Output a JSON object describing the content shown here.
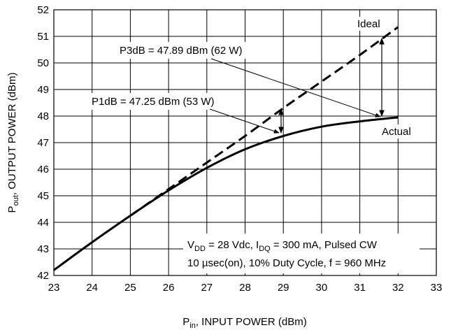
{
  "chart_data": {
    "type": "line",
    "xlabel": "P_in, INPUT POWER (dBm)",
    "xlabel_main": "P",
    "xlabel_sub": "in",
    "xlabel_rest": ", INPUT POWER (dBm)",
    "ylabel": "P_out, OUTPUT POWER (dBm)",
    "ylabel_main": "P",
    "ylabel_sub": "out",
    "ylabel_rest": ", OUTPUT POWER (dBm)",
    "xlim": [
      23,
      33
    ],
    "ylim": [
      42,
      52
    ],
    "x_ticks": [
      "23",
      "24",
      "25",
      "26",
      "27",
      "28",
      "29",
      "30",
      "31",
      "32",
      "33"
    ],
    "y_ticks": [
      "42",
      "43",
      "44",
      "45",
      "46",
      "47",
      "48",
      "49",
      "50",
      "51",
      "52"
    ],
    "grid": true,
    "series": [
      {
        "name": "Ideal",
        "style": "dashed",
        "x": [
          25,
          26,
          27,
          28,
          29,
          30,
          31,
          32
        ],
        "y": [
          44.25,
          45.25,
          46.25,
          47.25,
          48.3,
          49.3,
          50.3,
          51.35
        ]
      },
      {
        "name": "Actual",
        "style": "solid",
        "x": [
          23,
          24,
          25,
          26,
          27,
          28,
          29,
          30,
          31,
          32
        ],
        "y": [
          42.2,
          43.25,
          44.25,
          45.2,
          46.05,
          46.75,
          47.25,
          47.6,
          47.8,
          47.95
        ]
      }
    ],
    "annotations": {
      "p3db": "P3dB = 47.89 dBm (62 W)",
      "p1db": "P1dB = 47.25 dBm (53 W)",
      "ideal": "Ideal",
      "actual": "Actual"
    },
    "conditions": {
      "line1_a": "V",
      "line1_a_sub": "DD",
      "line1_b": " = 28 Vdc, I",
      "line1_b_sub": "DQ",
      "line1_c": " = 300 mA, Pulsed CW",
      "line2": "10 µsec(on), 10% Duty Cycle, f = 960 MHz"
    }
  }
}
